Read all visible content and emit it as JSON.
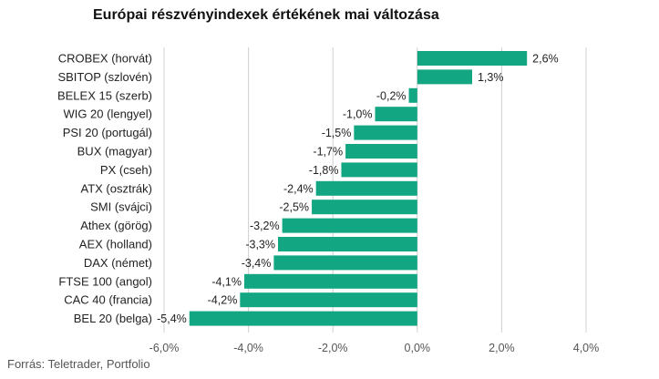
{
  "title": "Európai részvényindexek értékének mai változása",
  "source": "Forrás: Teletrader, Portfolio",
  "colors": {
    "bar": "#12a683",
    "grid": "#d0d0d0",
    "text": "#222222",
    "axis": "#555555"
  },
  "chart_data": {
    "type": "bar",
    "orientation": "horizontal",
    "title": "Európai részvényindexek értékének mai változása",
    "xlabel": "",
    "ylabel": "",
    "xlim": [
      -6,
      4
    ],
    "grid": true,
    "xticks": [
      {
        "value": -6,
        "label": "-6,0%"
      },
      {
        "value": -4,
        "label": "-4,0%"
      },
      {
        "value": -2,
        "label": "-2,0%"
      },
      {
        "value": 0,
        "label": "0,0%"
      },
      {
        "value": 2,
        "label": "2,0%"
      },
      {
        "value": 4,
        "label": "4,0%"
      }
    ],
    "categories": [
      "CROBEX (horvát)",
      "SBITOP (szlovén)",
      "BELEX 15 (szerb)",
      "WIG 20 (lengyel)",
      "PSI 20 (portugál)",
      "BUX (magyar)",
      "PX (cseh)",
      "ATX (osztrák)",
      "SMI (svájci)",
      "Athex (görög)",
      "AEX (holland)",
      "DAX (német)",
      "FTSE 100 (angol)",
      "CAC 40 (francia)",
      "BEL 20 (belga)"
    ],
    "values": [
      2.6,
      1.3,
      -0.2,
      -1.0,
      -1.5,
      -1.7,
      -1.8,
      -2.4,
      -2.5,
      -3.2,
      -3.3,
      -3.4,
      -4.1,
      -4.2,
      -5.4
    ],
    "value_labels": [
      "2,6%",
      "1,3%",
      "-0,2%",
      "-1,0%",
      "-1,5%",
      "-1,7%",
      "-1,8%",
      "-2,4%",
      "-2,5%",
      "-3,2%",
      "-3,3%",
      "-3,4%",
      "-4,1%",
      "-4,2%",
      "-5,4%"
    ]
  }
}
